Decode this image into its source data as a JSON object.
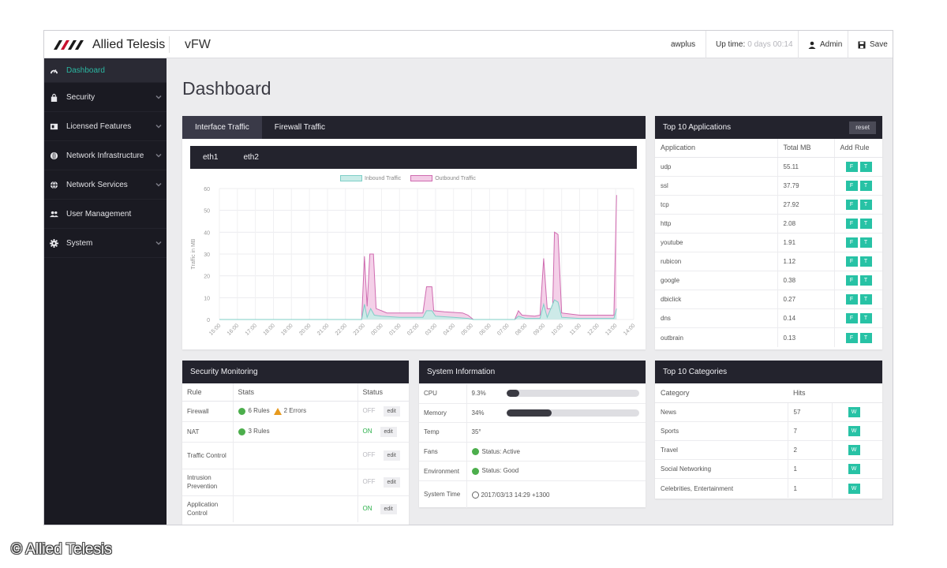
{
  "brand": {
    "logo_text": "Allied Telesis",
    "app_title": "vFW"
  },
  "topbar": {
    "hostname": "awplus",
    "uptime_label": "Up time:",
    "uptime_value": "0 days 00:14",
    "user_label": "Admin",
    "save_label": "Save"
  },
  "sidebar": {
    "items": [
      {
        "label": "Dashboard",
        "icon": "dashboard-gauge-icon",
        "active": true
      },
      {
        "label": "Security",
        "icon": "lock-icon"
      },
      {
        "label": "Licensed Features",
        "icon": "license-icon"
      },
      {
        "label": "Network Infrastructure",
        "icon": "network-globe-icon"
      },
      {
        "label": "Network Services",
        "icon": "services-globe-icon"
      },
      {
        "label": "User Management",
        "icon": "users-icon"
      },
      {
        "label": "System",
        "icon": "gear-icon"
      }
    ]
  },
  "page": {
    "title": "Dashboard"
  },
  "traffic": {
    "tabs": [
      "Interface Traffic",
      "Firewall Traffic"
    ],
    "subtabs": [
      "eth1",
      "eth2"
    ],
    "legend_inbound": "Inbound Traffic",
    "legend_outbound": "Outbound Traffic",
    "colors": {
      "inbound_fill": "#c9ece8",
      "inbound_line": "#7fcfc7",
      "outbound_fill": "#f3cbe6",
      "outbound_line": "#cf6cb0"
    }
  },
  "chart_data": {
    "type": "area",
    "ylabel": "Traffic in MB",
    "ylim": [
      0,
      60
    ],
    "yticks": [
      0,
      10,
      20,
      30,
      40,
      50,
      60
    ],
    "grid": true,
    "x": [
      "15:00",
      "16:00",
      "17:00",
      "18:00",
      "19:00",
      "20:00",
      "21:00",
      "22:00",
      "23:00",
      "00:00",
      "01:00",
      "02:00",
      "03:00",
      "04:00",
      "05:00",
      "06:00",
      "07:00",
      "08:00",
      "09:00",
      "10:00",
      "11:00",
      "12:00",
      "13:00",
      "14:00"
    ],
    "series": [
      {
        "name": "Outbound Traffic",
        "points": [
          [
            0,
            0
          ],
          [
            1,
            0
          ],
          [
            2,
            0
          ],
          [
            3,
            0
          ],
          [
            4,
            0
          ],
          [
            5,
            0
          ],
          [
            6,
            0
          ],
          [
            7,
            0
          ],
          [
            7.9,
            0
          ],
          [
            8.05,
            29
          ],
          [
            8.2,
            6
          ],
          [
            8.35,
            30
          ],
          [
            8.55,
            30
          ],
          [
            8.7,
            5
          ],
          [
            9.0,
            4
          ],
          [
            9.3,
            3
          ],
          [
            10,
            3
          ],
          [
            11,
            3
          ],
          [
            11.3,
            3
          ],
          [
            11.5,
            15
          ],
          [
            11.8,
            15
          ],
          [
            11.9,
            4
          ],
          [
            12.5,
            3.5
          ],
          [
            13.5,
            3
          ],
          [
            13.8,
            2
          ],
          [
            14.1,
            0
          ],
          [
            15,
            0
          ],
          [
            16,
            0
          ],
          [
            16.4,
            0
          ],
          [
            16.6,
            4
          ],
          [
            16.8,
            2
          ],
          [
            17.5,
            1.5
          ],
          [
            17.8,
            2
          ],
          [
            18.0,
            28
          ],
          [
            18.2,
            5
          ],
          [
            18.5,
            5
          ],
          [
            18.6,
            40
          ],
          [
            18.8,
            39
          ],
          [
            19.0,
            3
          ],
          [
            19.5,
            2.5
          ],
          [
            20,
            2
          ],
          [
            21,
            2
          ],
          [
            21.9,
            2
          ],
          [
            22.05,
            57
          ]
        ]
      },
      {
        "name": "Inbound Traffic",
        "points": [
          [
            0,
            0
          ],
          [
            1,
            0
          ],
          [
            2,
            0
          ],
          [
            3,
            0
          ],
          [
            4,
            0
          ],
          [
            5,
            0
          ],
          [
            6,
            0
          ],
          [
            7,
            0
          ],
          [
            7.9,
            0
          ],
          [
            8.05,
            7
          ],
          [
            8.2,
            1
          ],
          [
            8.4,
            5
          ],
          [
            8.6,
            2
          ],
          [
            9,
            1.5
          ],
          [
            10,
            1
          ],
          [
            11,
            1
          ],
          [
            11.3,
            1
          ],
          [
            11.5,
            4
          ],
          [
            11.8,
            4
          ],
          [
            12,
            1.5
          ],
          [
            13,
            1
          ],
          [
            13.8,
            0.5
          ],
          [
            14.1,
            0
          ],
          [
            15,
            0
          ],
          [
            16,
            0
          ],
          [
            16.4,
            0
          ],
          [
            16.6,
            1.5
          ],
          [
            17,
            0.5
          ],
          [
            17.8,
            0.5
          ],
          [
            18.0,
            7
          ],
          [
            18.2,
            1
          ],
          [
            18.6,
            9
          ],
          [
            18.8,
            8
          ],
          [
            19,
            1
          ],
          [
            20,
            0.5
          ],
          [
            21,
            0.5
          ],
          [
            21.9,
            0.5
          ],
          [
            22.05,
            5
          ]
        ]
      }
    ]
  },
  "top_apps": {
    "title": "Top 10 Applications",
    "reset_label": "reset",
    "headers": [
      "Application",
      "Total MB",
      "Add Rule"
    ],
    "btn_f": "F",
    "btn_t": "T",
    "rows": [
      {
        "app": "udp",
        "mb": "55.11"
      },
      {
        "app": "ssl",
        "mb": "37.79"
      },
      {
        "app": "tcp",
        "mb": "27.92"
      },
      {
        "app": "http",
        "mb": "2.08"
      },
      {
        "app": "youtube",
        "mb": "1.91"
      },
      {
        "app": "rubicon",
        "mb": "1.12"
      },
      {
        "app": "google",
        "mb": "0.38"
      },
      {
        "app": "dbiclick",
        "mb": "0.27"
      },
      {
        "app": "dns",
        "mb": "0.14"
      },
      {
        "app": "outbrain",
        "mb": "0.13"
      }
    ]
  },
  "security": {
    "title": "Security Monitoring",
    "headers": [
      "Rule",
      "Stats",
      "Status"
    ],
    "edit_label": "edit",
    "rows": [
      {
        "rule": "Firewall",
        "stats": "6 Rules",
        "errors": "2 Errors",
        "status": "OFF"
      },
      {
        "rule": "NAT",
        "stats": "3 Rules",
        "status": "ON"
      },
      {
        "rule": "Traffic Control",
        "stats": "",
        "status": "OFF"
      },
      {
        "rule": "Intrusion Prevention",
        "stats": "",
        "status": "OFF"
      },
      {
        "rule": "Application Control",
        "stats": "",
        "status": "ON"
      }
    ]
  },
  "system_info": {
    "title": "System Information",
    "cpu_label": "CPU",
    "cpu_value": "9.3%",
    "cpu_fraction": 0.093,
    "memory_label": "Memory",
    "memory_value": "34%",
    "memory_fraction": 0.34,
    "temp_label": "Temp",
    "temp_value": "35°",
    "fans_label": "Fans",
    "fans_value": "Status: Active",
    "env_label": "Environment",
    "env_value": "Status: Good",
    "time_label": "System Time",
    "time_value": "2017/03/13 14:29 +1300"
  },
  "top_categories": {
    "title": "Top 10 Categories",
    "headers": [
      "Category",
      "Hits"
    ],
    "btn_label": "W",
    "rows": [
      {
        "category": "News",
        "hits": "57"
      },
      {
        "category": "Sports",
        "hits": "7"
      },
      {
        "category": "Travel",
        "hits": "2"
      },
      {
        "category": "Social Networking",
        "hits": "1"
      },
      {
        "category": "Celebrities, Entertainment",
        "hits": "1"
      }
    ]
  },
  "watermark": "© Allied Telesis"
}
